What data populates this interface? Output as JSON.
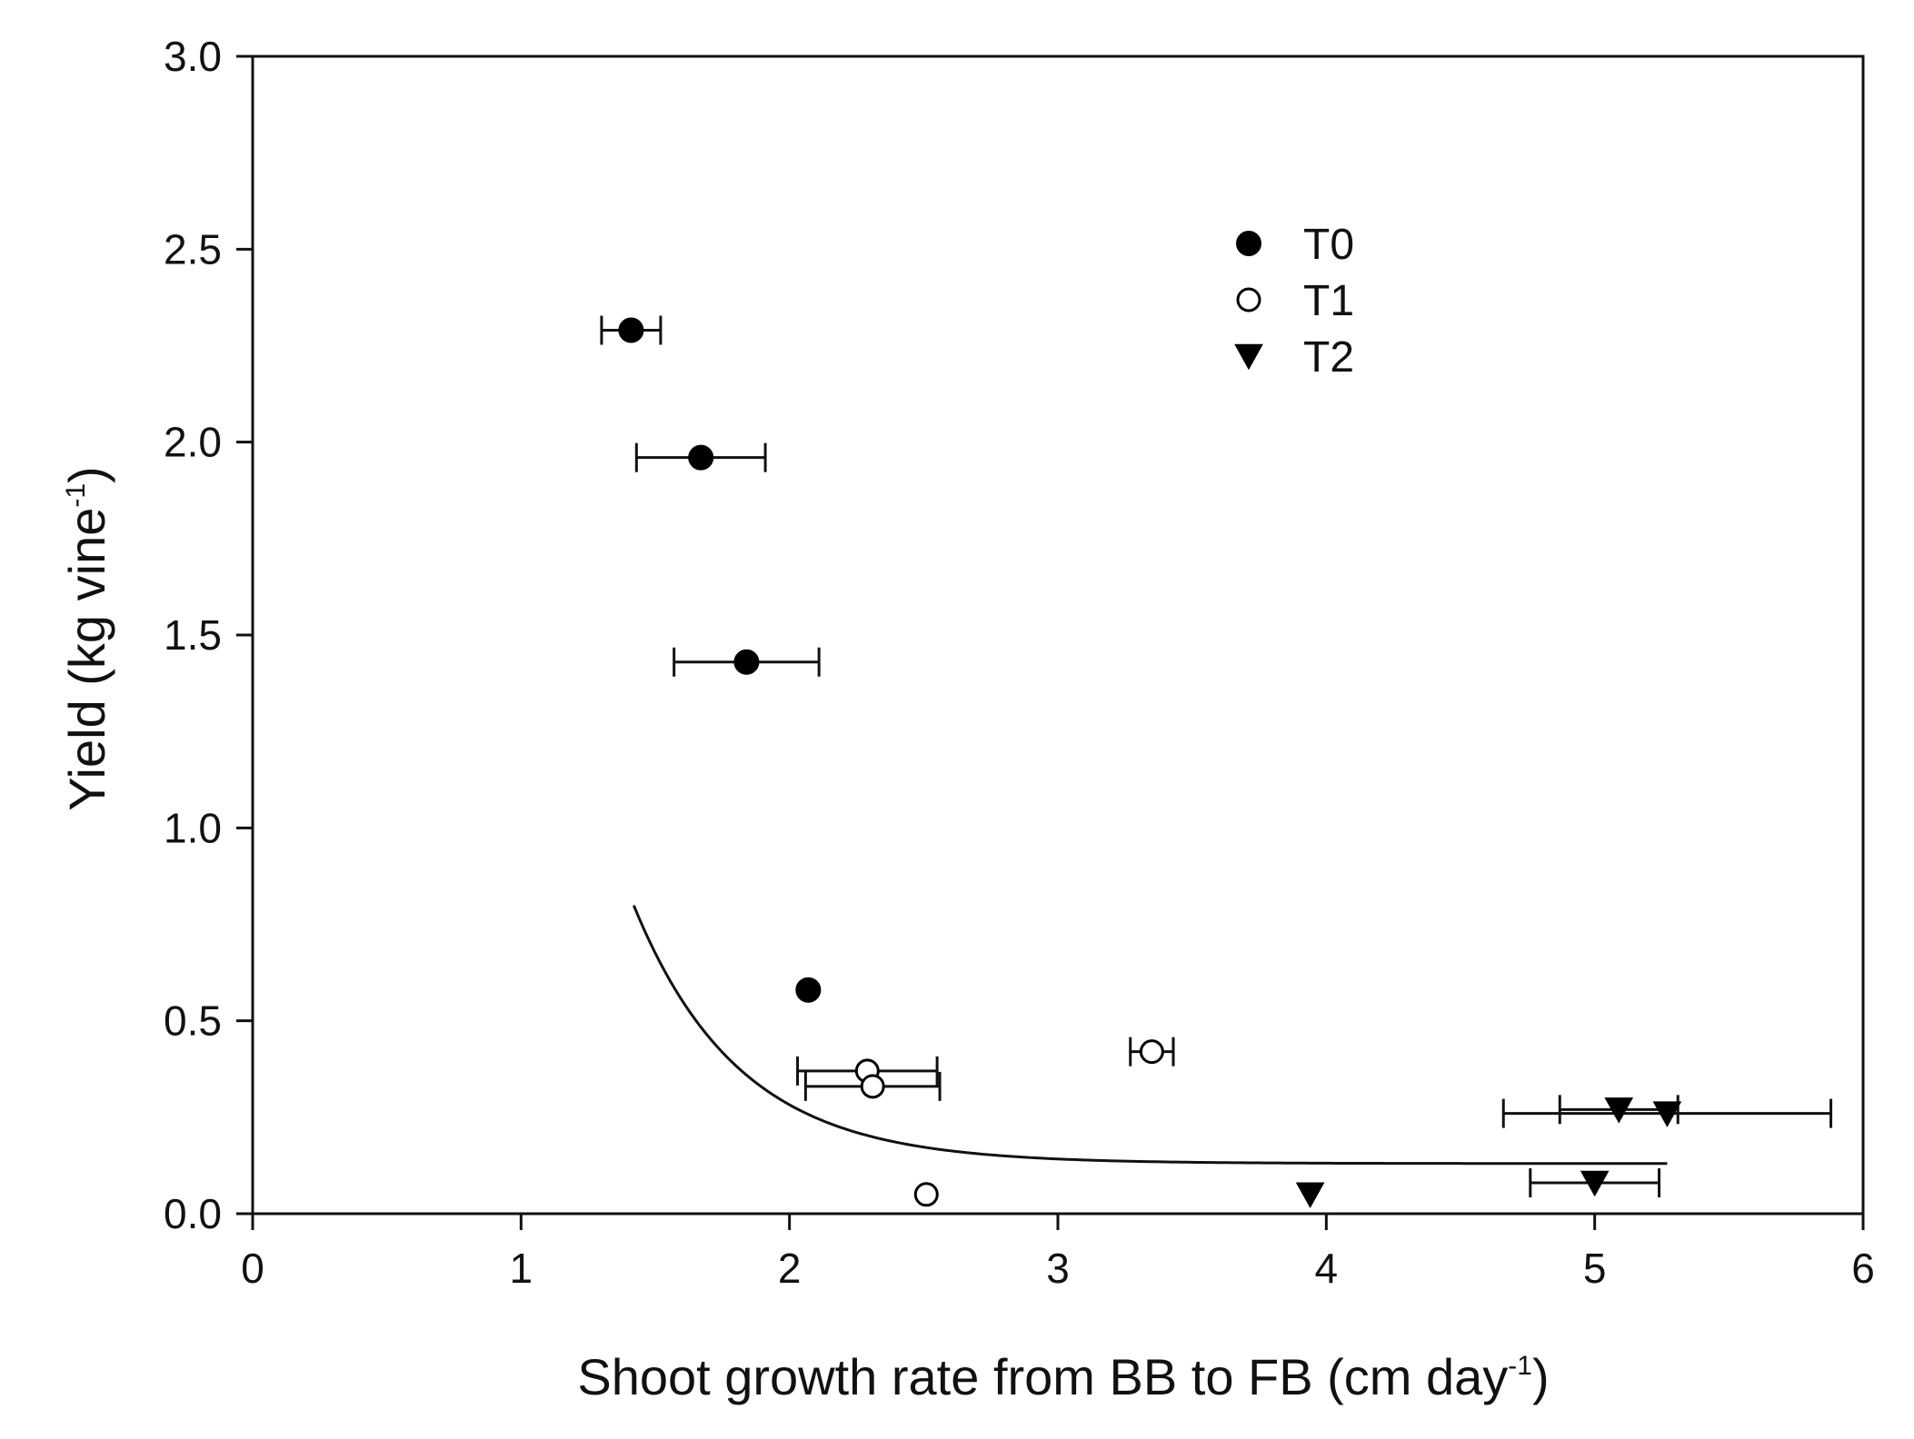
{
  "chart_data": {
    "type": "scatter",
    "title": "",
    "xlabel": "Shoot growth rate from BB to FB (cm day",
    "xlabel_sup": "-1",
    "xlabel_close": ")",
    "ylabel": "Yield (kg vine",
    "ylabel_sup": "-1",
    "ylabel_close": ")",
    "xlim": [
      0,
      6
    ],
    "ylim": [
      0,
      3.0
    ],
    "x_ticks": [
      0,
      1,
      2,
      3,
      4,
      5,
      6
    ],
    "x_tick_labels": [
      "0",
      "1",
      "2",
      "3",
      "4",
      "5",
      "6"
    ],
    "y_ticks": [
      0,
      0.5,
      1.0,
      1.5,
      2.0,
      2.5,
      3.0
    ],
    "y_tick_labels": [
      "0.0",
      "0.5",
      "1.0",
      "1.5",
      "2.0",
      "2.5",
      "3.0"
    ],
    "grid": false,
    "legend_position": "top-center",
    "series": [
      {
        "name": "T0",
        "marker": "filled-circle",
        "points": [
          {
            "x": 1.41,
            "y": 2.29,
            "xerr": 0.11
          },
          {
            "x": 1.67,
            "y": 1.96,
            "xerr": 0.24
          },
          {
            "x": 1.84,
            "y": 1.43,
            "xerr": 0.27
          },
          {
            "x": 2.07,
            "y": 0.58,
            "xerr": 0
          }
        ]
      },
      {
        "name": "T1",
        "marker": "open-circle",
        "points": [
          {
            "x": 2.29,
            "y": 0.37,
            "xerr": 0.26
          },
          {
            "x": 2.31,
            "y": 0.33,
            "xerr": 0.25
          },
          {
            "x": 3.35,
            "y": 0.42,
            "xerr": 0.08
          },
          {
            "x": 2.51,
            "y": 0.05,
            "xerr": 0
          }
        ]
      },
      {
        "name": "T2",
        "marker": "filled-triangle-down",
        "points": [
          {
            "x": 5.09,
            "y": 0.27,
            "xerr": 0.22
          },
          {
            "x": 5.27,
            "y": 0.26,
            "xerr": 0.61
          },
          {
            "x": 5.0,
            "y": 0.08,
            "xerr": 0.24
          },
          {
            "x": 3.94,
            "y": 0.05,
            "xerr": 0
          }
        ]
      }
    ],
    "fit_curve": {
      "type": "exponential-decay",
      "y0": 0.13,
      "a": 25.0,
      "b": 2.55,
      "x_range": [
        1.42,
        5.27
      ]
    },
    "colors": {
      "axis": "#111111",
      "marker_fill": "#000000",
      "open_marker_fill": "#ffffff",
      "curve": "#111111"
    }
  }
}
